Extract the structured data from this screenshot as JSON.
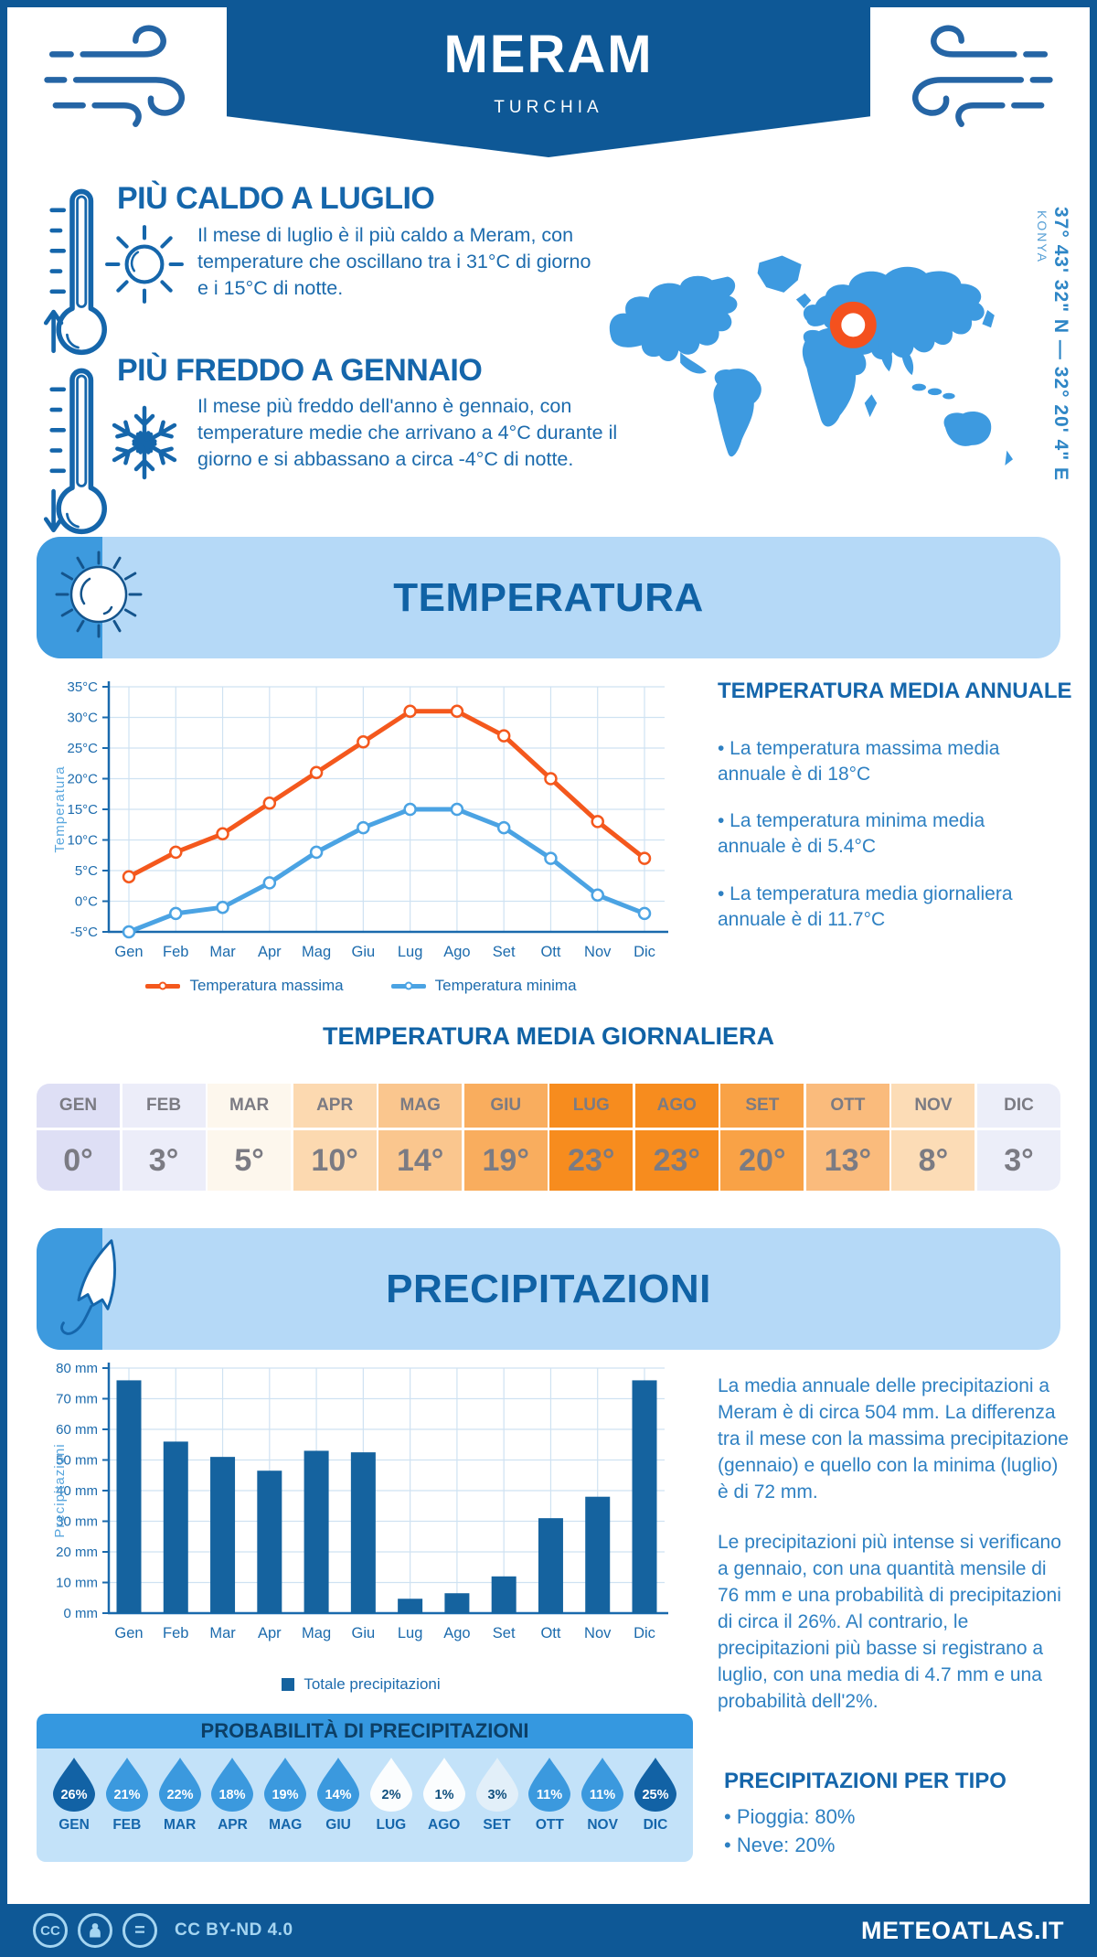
{
  "colors": {
    "primary_dark": "#0e5896",
    "heading_blue": "#1566ab",
    "body_blue": "#2e80c2",
    "banner_light": "#b5d9f7",
    "badge_blue": "#3d9ade",
    "map_blue": "#3d9ae0",
    "marker_orange": "#f4511e",
    "grid_blue": "#cfe2f2",
    "axis_blue": "#1a6aad"
  },
  "header": {
    "title": "MERAM",
    "subtitle": "TURCHIA"
  },
  "icons": {
    "wind": "wind-icon",
    "thermometer_warm": "thermometer-up-icon",
    "sun": "sun-icon",
    "thermometer_cold": "thermometer-down-icon",
    "snowflake": "snowflake-icon",
    "umbrella": "umbrella-icon",
    "marker": "location-ring-icon",
    "cc": "cc-icon",
    "attribution": "attribution-person-icon",
    "no_derivatives": "equals-icon"
  },
  "warm": {
    "title": "PIÙ CALDO A LUGLIO",
    "text": "Il mese di luglio è il più caldo a Meram, con temperature che oscillano tra i 31°C di giorno e i 15°C di notte."
  },
  "cold": {
    "title": "PIÙ FREDDO A GENNAIO",
    "text": "Il mese più freddo dell'anno è gennaio, con temperature medie che arrivano a 4°C durante il giorno e si abbassano a circa -4°C di notte."
  },
  "map": {
    "coordinates": "37° 43' 32\" N — 32° 20' 4\" E",
    "region": "KONYA"
  },
  "temperature": {
    "section_title": "TEMPERATURA",
    "annual_title": "TEMPERATURA MEDIA ANNUALE",
    "annual_bullets": [
      "• La temperatura massima media annuale è di 18°C",
      "• La temperatura minima media annuale è di 5.4°C",
      "• La temperatura media giornaliera annuale è di 11.7°C"
    ],
    "daily_title": "TEMPERATURA MEDIA GIORNALIERA",
    "monthly": {
      "months": [
        "GEN",
        "FEB",
        "MAR",
        "APR",
        "MAG",
        "GIU",
        "LUG",
        "AGO",
        "SET",
        "OTT",
        "NOV",
        "DIC"
      ],
      "values": [
        "0°",
        "3°",
        "5°",
        "10°",
        "14°",
        "19°",
        "23°",
        "23°",
        "20°",
        "13°",
        "8°",
        "3°"
      ],
      "cell_colors": [
        "#dedff5",
        "#ecedf9",
        "#fdf7ed",
        "#fcd9b0",
        "#fac68e",
        "#f9ad5e",
        "#f78c1e",
        "#f78c1e",
        "#f9a246",
        "#fabb7c",
        "#fcdcb6",
        "#eceef9"
      ],
      "text_color": "#7b7b83"
    }
  },
  "chart_data": [
    {
      "type": "line",
      "title": "",
      "categories": [
        "Gen",
        "Feb",
        "Mar",
        "Apr",
        "Mag",
        "Giu",
        "Lug",
        "Ago",
        "Set",
        "Ott",
        "Nov",
        "Dic"
      ],
      "series": [
        {
          "name": "Temperatura massima",
          "color": "#f4581d",
          "values": [
            4,
            8,
            11,
            16,
            21,
            26,
            31,
            31,
            27,
            20,
            13,
            7
          ]
        },
        {
          "name": "Temperatura minima",
          "color": "#4ba3e3",
          "values": [
            -5,
            -2,
            -1,
            3,
            8,
            12,
            15,
            15,
            12,
            7,
            1,
            -2
          ]
        }
      ],
      "xlabel": "",
      "ylabel": "Temperatura",
      "ylim": [
        -5,
        35
      ],
      "ystep": 5,
      "ytick_suffix": "°C",
      "grid": true,
      "legend_position": "bottom"
    },
    {
      "type": "bar",
      "title": "",
      "categories": [
        "Gen",
        "Feb",
        "Mar",
        "Apr",
        "Mag",
        "Giu",
        "Lug",
        "Ago",
        "Set",
        "Ott",
        "Nov",
        "Dic"
      ],
      "series": [
        {
          "name": "Totale precipitazioni",
          "color": "#15639f",
          "values": [
            76,
            56,
            51,
            46.5,
            53,
            52.5,
            4.7,
            6.5,
            12,
            31,
            38,
            76
          ]
        }
      ],
      "xlabel": "",
      "ylabel": "Precipitazioni",
      "ylim": [
        0,
        80
      ],
      "ystep": 10,
      "ytick_suffix": " mm",
      "grid": true,
      "legend_position": "bottom"
    }
  ],
  "precipitation": {
    "section_title": "PRECIPITAZIONI",
    "paragraphs": [
      "La media annuale delle precipitazioni a Meram è di circa 504 mm. La differenza tra il mese con la massima precipitazione (gennaio) e quello con la minima (luglio) è di 72 mm.",
      "Le precipitazioni più intense si verificano a gennaio, con una quantità mensile di 76 mm e una probabilità di precipitazioni di circa il 26%. Al contrario, le precipitazioni più basse si registrano a luglio, con una media di 4.7 mm e una probabilità dell'2%."
    ],
    "probability": {
      "title": "PROBABILITÀ DI PRECIPITAZIONI",
      "months": [
        "GEN",
        "FEB",
        "MAR",
        "APR",
        "MAG",
        "GIU",
        "LUG",
        "AGO",
        "SET",
        "OTT",
        "NOV",
        "DIC"
      ],
      "values": [
        "26%",
        "21%",
        "22%",
        "18%",
        "19%",
        "14%",
        "2%",
        "1%",
        "3%",
        "11%",
        "11%",
        "25%"
      ],
      "drop_colors": [
        "#1262a5",
        "#3b99de",
        "#3b99de",
        "#3b99de",
        "#3b99de",
        "#3b99de",
        "#fbfdfe",
        "#fbfdfe",
        "#e2eff9",
        "#3b99de",
        "#3b99de",
        "#1262a5"
      ],
      "value_colors": [
        "#ffffff",
        "#ffffff",
        "#ffffff",
        "#ffffff",
        "#ffffff",
        "#ffffff",
        "#11507e",
        "#11507e",
        "#11507e",
        "#ffffff",
        "#ffffff",
        "#ffffff"
      ]
    },
    "by_type": {
      "title": "PRECIPITAZIONI PER TIPO",
      "items": [
        "• Pioggia: 80%",
        "• Neve: 20%"
      ]
    }
  },
  "footer": {
    "license": "CC BY-ND 4.0",
    "site": "METEOATLAS.IT"
  }
}
